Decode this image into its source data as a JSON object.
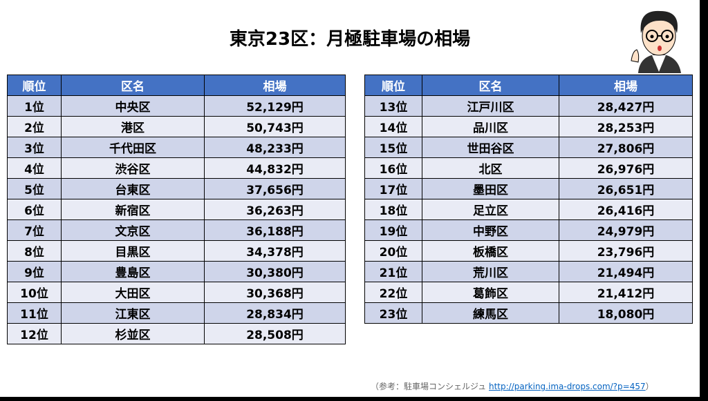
{
  "title": "東京23区：月極駐車場の相場",
  "tables": [
    {
      "header": [
        "順位",
        "区名",
        "相場"
      ],
      "rows": [
        [
          "1位",
          "中央区",
          "52,129円"
        ],
        [
          "2位",
          "港区",
          "50,743円"
        ],
        [
          "3位",
          "千代田区",
          "48,233円"
        ],
        [
          "4位",
          "渋谷区",
          "44,832円"
        ],
        [
          "5位",
          "台東区",
          "37,656円"
        ],
        [
          "6位",
          "新宿区",
          "36,263円"
        ],
        [
          "7位",
          "文京区",
          "36,188円"
        ],
        [
          "8位",
          "目黒区",
          "34,378円"
        ],
        [
          "9位",
          "豊島区",
          "30,380円"
        ],
        [
          "10位",
          "大田区",
          "30,368円"
        ],
        [
          "11位",
          "江東区",
          "28,834円"
        ],
        [
          "12位",
          "杉並区",
          "28,508円"
        ]
      ]
    },
    {
      "header": [
        "順位",
        "区名",
        "相場"
      ],
      "rows": [
        [
          "13位",
          "江戸川区",
          "28,427円"
        ],
        [
          "14位",
          "品川区",
          "28,253円"
        ],
        [
          "15位",
          "世田谷区",
          "27,806円"
        ],
        [
          "16位",
          "北区",
          "26,976円"
        ],
        [
          "17位",
          "墨田区",
          "26,651円"
        ],
        [
          "18位",
          "足立区",
          "26,416円"
        ],
        [
          "19位",
          "中野区",
          "24,979円"
        ],
        [
          "20位",
          "板橋区",
          "23,796円"
        ],
        [
          "21位",
          "荒川区",
          "21,494円"
        ],
        [
          "22位",
          "葛飾区",
          "21,412円"
        ],
        [
          "23位",
          "練馬区",
          "18,080円"
        ]
      ]
    }
  ],
  "footer": {
    "prefix": "（参考：駐車場コンシェルジュ",
    "link": "http://parking.ima-drops.com/?p=457",
    "suffix": "）"
  }
}
